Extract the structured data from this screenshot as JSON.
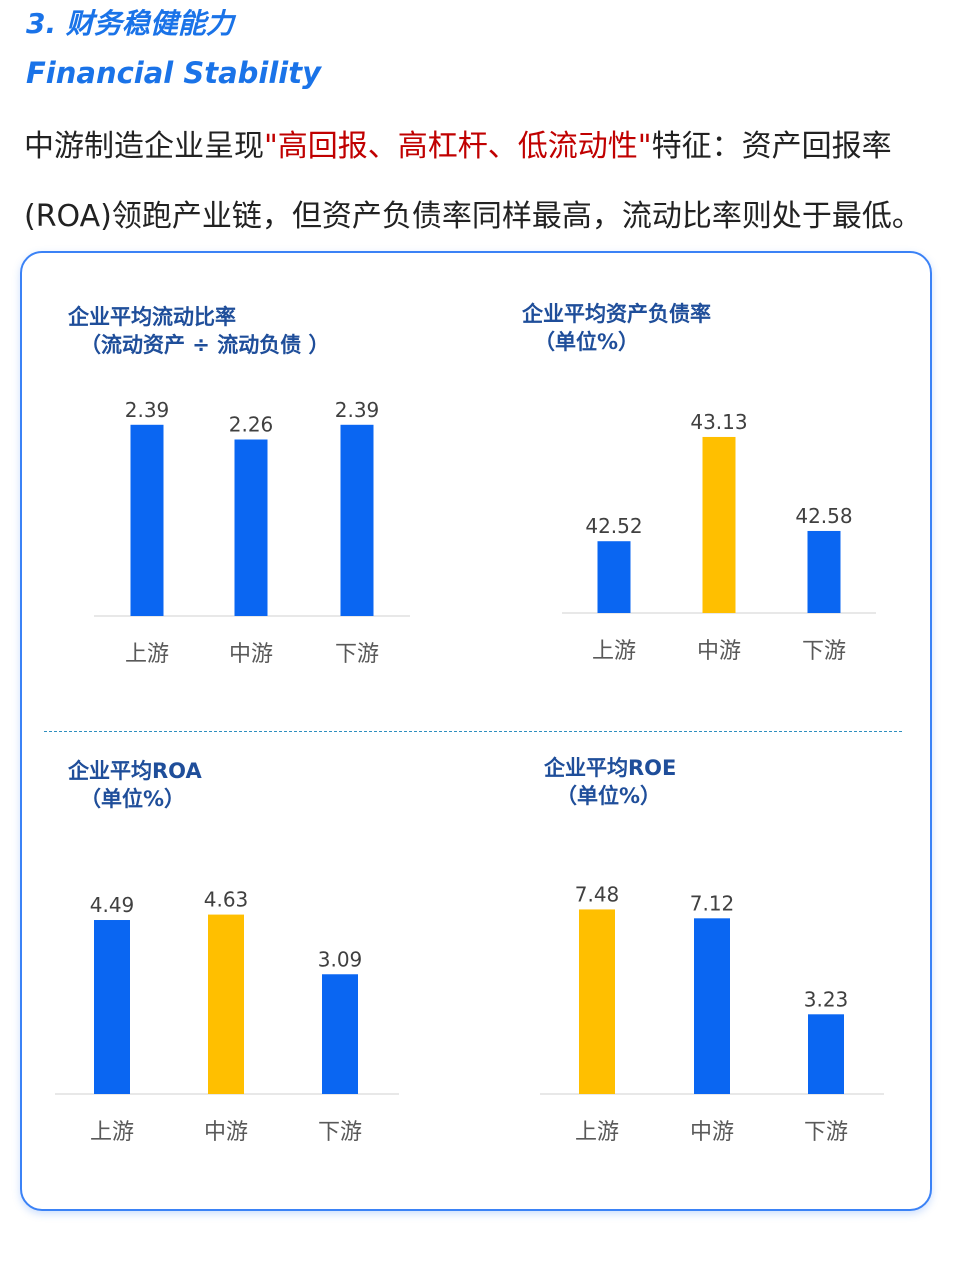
{
  "header": {
    "title_cn": "3. 财务稳健能力",
    "title_en": "Financial Stability"
  },
  "intro": {
    "part1": "中游制造企业呈现",
    "highlight": "\"高回报、高杠杆、低流动性\"",
    "part2": "特征：资产回报率(ROA)领跑产业链，但资产负债率同样最高，流动比率则处于最低。"
  },
  "colors": {
    "blue_bar": "#0a66f2",
    "yellow_bar": "#ffbf00",
    "title_blue": "#1a73e8",
    "highlight_red": "#c00000",
    "chart_title": "#1f4e9a"
  },
  "chart_data": [
    {
      "type": "bar",
      "title": "企业平均流动比率",
      "subtitle": "（流动资产 ÷ 流动负债 ）",
      "categories": [
        "上游",
        "中游",
        "下游"
      ],
      "values": [
        2.39,
        2.26,
        2.39
      ],
      "value_labels": [
        "2.39",
        "2.26",
        "2.39"
      ],
      "bar_colors": [
        "#0a66f2",
        "#0a66f2",
        "#0a66f2"
      ],
      "ylim": [
        0.7,
        2.45
      ],
      "grid": false
    },
    {
      "type": "bar",
      "title": "企业平均资产负债率",
      "subtitle": "（单位%）",
      "categories": [
        "上游",
        "中游",
        "下游"
      ],
      "values": [
        42.52,
        43.13,
        42.58
      ],
      "value_labels": [
        "42.52",
        "43.13",
        "42.58"
      ],
      "bar_colors": [
        "#0a66f2",
        "#ffbf00",
        "#0a66f2"
      ],
      "ylim": [
        42.1,
        43.2
      ],
      "grid": false
    },
    {
      "type": "bar",
      "title": "企业平均ROA",
      "subtitle": "（单位%）",
      "categories": [
        "上游",
        "中游",
        "下游"
      ],
      "values": [
        4.49,
        4.63,
        3.09
      ],
      "value_labels": [
        "4.49",
        "4.63",
        "3.09"
      ],
      "bar_colors": [
        "#0a66f2",
        "#ffbf00",
        "#0a66f2"
      ],
      "ylim": [
        0,
        4.8
      ],
      "grid": false
    },
    {
      "type": "bar",
      "title": "企业平均ROE",
      "subtitle": "（单位%）",
      "categories": [
        "上游",
        "中游",
        "下游"
      ],
      "values": [
        7.48,
        7.12,
        3.23
      ],
      "value_labels": [
        "7.48",
        "7.12",
        "3.23"
      ],
      "bar_colors": [
        "#ffbf00",
        "#0a66f2",
        "#0a66f2"
      ],
      "ylim": [
        0,
        7.7
      ],
      "grid": false
    }
  ]
}
